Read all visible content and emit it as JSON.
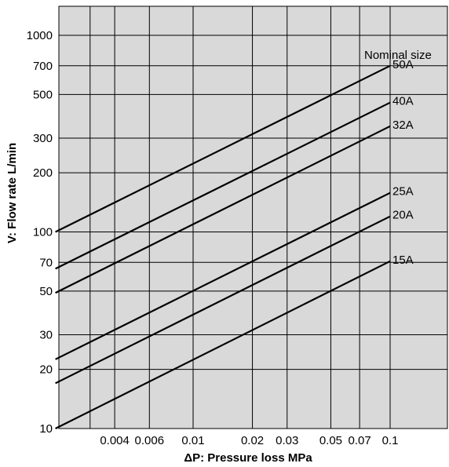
{
  "chart_data": {
    "type": "line",
    "xlabel": "ΔP: Pressure loss MPa",
    "ylabel": "V: Flow rate L/min",
    "x_scale": "log",
    "y_scale": "log",
    "xlim": [
      0.002,
      0.2
    ],
    "ylim": [
      10,
      1600
    ],
    "grid": true,
    "x_ticks": [
      {
        "value": 0.004,
        "label": "0.004"
      },
      {
        "value": 0.006,
        "label": "0.006"
      },
      {
        "value": 0.01,
        "label": "0.01"
      },
      {
        "value": 0.02,
        "label": "0.02"
      },
      {
        "value": 0.03,
        "label": "0.03"
      },
      {
        "value": 0.05,
        "label": "0.05"
      },
      {
        "value": 0.07,
        "label": "0.07"
      },
      {
        "value": 0.1,
        "label": "0.1"
      }
    ],
    "y_ticks": [
      {
        "value": 10,
        "label": "10"
      },
      {
        "value": 20,
        "label": "20"
      },
      {
        "value": 30,
        "label": "30"
      },
      {
        "value": 50,
        "label": "50"
      },
      {
        "value": 70,
        "label": "70"
      },
      {
        "value": 100,
        "label": "100"
      },
      {
        "value": 200,
        "label": "200"
      },
      {
        "value": 300,
        "label": "300"
      },
      {
        "value": 500,
        "label": "500"
      },
      {
        "value": 700,
        "label": "700"
      },
      {
        "value": 1000,
        "label": "1000"
      }
    ],
    "legend_title": "Nominal size",
    "series": [
      {
        "name": "50A",
        "x": [
          0.002,
          0.1
        ],
        "y": [
          100,
          700
        ]
      },
      {
        "name": "40A",
        "x": [
          0.002,
          0.1
        ],
        "y": [
          65,
          455
        ]
      },
      {
        "name": "32A",
        "x": [
          0.002,
          0.1
        ],
        "y": [
          49,
          345
        ]
      },
      {
        "name": "25A",
        "x": [
          0.002,
          0.1
        ],
        "y": [
          22.5,
          158
        ]
      },
      {
        "name": "20A",
        "x": [
          0.002,
          0.1
        ],
        "y": [
          17,
          120
        ]
      },
      {
        "name": "15A",
        "x": [
          0.002,
          0.1
        ],
        "y": [
          10,
          71
        ]
      }
    ]
  }
}
